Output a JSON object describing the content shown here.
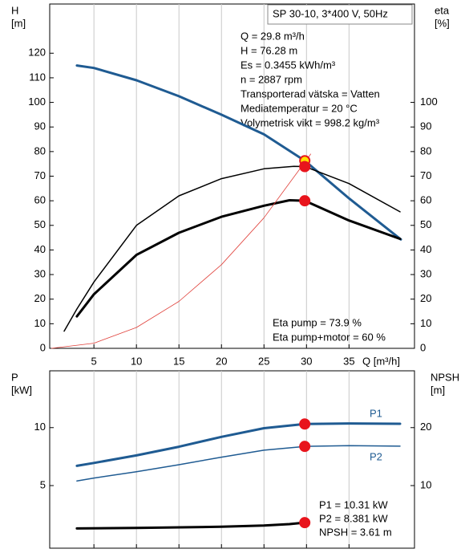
{
  "chart_data": [
    {
      "type": "line",
      "model": "SP 30-10, 3*400 V, 50Hz",
      "ylabel": [
        "H",
        "[m]"
      ],
      "y2label": [
        "eta",
        "[%]"
      ],
      "xlabel": "Q [m³/h]",
      "xlim": [
        -0.2,
        42.7
      ],
      "xticks": [
        5,
        10,
        15,
        20,
        25,
        30,
        35
      ],
      "show_xtick_labels": true,
      "ylim": [
        0,
        140
      ],
      "yticks": [
        0,
        10,
        20,
        30,
        40,
        50,
        60,
        70,
        80,
        90,
        100,
        110,
        120
      ],
      "y2lim": [
        0,
        140
      ],
      "y2ticks": [
        0,
        10,
        20,
        30,
        40,
        50,
        60,
        70,
        80,
        90,
        100
      ],
      "grid": true,
      "info": [
        "Q = 29.8 m³/h",
        "H = 76.28 m",
        "Es = 0.3455 kWh/m³",
        "n = 2887 rpm",
        "Transporterad vätska = Vatten",
        "Mediatemperatur = 20 °C",
        "Volymetrisk vikt = 998.2 kg/m³"
      ],
      "notes": [
        "Eta pump = 73.9 %",
        "Eta pump+motor = 60 %"
      ],
      "series": [
        {
          "color": "#1f5b92",
          "linewidth": 3,
          "axis": "y",
          "x": [
            3,
            5,
            10,
            15,
            20,
            25,
            29.8,
            35,
            41.1
          ],
          "values": [
            115,
            114,
            109,
            102.5,
            95,
            87,
            76.28,
            61,
            44.3
          ]
        },
        {
          "color": "#000000",
          "linewidth": 1.5,
          "axis": "y2",
          "x": [
            1.5,
            3,
            5,
            10,
            15,
            20,
            25,
            28.5,
            29.8,
            35,
            41
          ],
          "values": [
            7,
            16,
            27,
            50,
            62,
            69,
            73,
            74,
            73.9,
            67,
            55.5
          ]
        },
        {
          "color": "#000000",
          "linewidth": 3,
          "axis": "y2",
          "x": [
            3,
            5,
            10,
            15,
            20,
            25,
            28,
            29.8,
            35,
            41
          ],
          "values": [
            13,
            22,
            38,
            47,
            53.5,
            58,
            60.2,
            60,
            52,
            44.5
          ]
        },
        {
          "color": "#e0403a",
          "linewidth": 0.8,
          "axis": "y",
          "x": [
            0,
            5,
            10,
            15,
            20,
            25,
            30.5
          ],
          "values": [
            0,
            2.1,
            8.5,
            19.1,
            34,
            53.1,
            79
          ]
        }
      ],
      "markers": [
        {
          "x": 29.8,
          "y": 76.28,
          "axis": "y",
          "color": "#ffe000"
        },
        {
          "x": 29.8,
          "y": 73.9,
          "axis": "y2",
          "color": "#e8141c"
        },
        {
          "x": 29.8,
          "y": 60,
          "axis": "y2",
          "color": "#e8141c"
        }
      ]
    },
    {
      "type": "line",
      "ylabel": [
        "P",
        "[kW]"
      ],
      "y2label": [
        "NPSH",
        "[m]"
      ],
      "xlim": [
        -0.2,
        42.7
      ],
      "xticks": [
        5,
        10,
        15,
        20,
        25,
        30,
        35
      ],
      "show_xtick_labels": false,
      "ylim": [
        -0.4,
        14.9
      ],
      "yticks": [
        5,
        10
      ],
      "y2lim": [
        -0.8,
        29.8
      ],
      "y2ticks": [
        10,
        20
      ],
      "grid": true,
      "notes": [
        "P1 = 10.31 kW",
        "P2 = 8.381 kW",
        "NPSH = 3.61 m"
      ],
      "series": [
        {
          "name": "P1",
          "name_position": "above",
          "color": "#1f5b92",
          "linewidth": 3,
          "axis": "y",
          "x": [
            3,
            5,
            10,
            15,
            20,
            25,
            29.8,
            35,
            41
          ],
          "values": [
            6.7,
            6.95,
            7.6,
            8.35,
            9.2,
            9.95,
            10.31,
            10.36,
            10.33
          ]
        },
        {
          "name": "P2",
          "name_position": "below",
          "color": "#1f5b92",
          "linewidth": 1.5,
          "axis": "y",
          "x": [
            3,
            5,
            10,
            15,
            20,
            25,
            29.8,
            35,
            41
          ],
          "values": [
            5.4,
            5.65,
            6.2,
            6.8,
            7.45,
            8.05,
            8.381,
            8.45,
            8.4
          ]
        },
        {
          "color": "#000000",
          "linewidth": 3,
          "axis": "y2",
          "x": [
            3,
            10,
            20,
            25,
            28,
            29.8
          ],
          "values": [
            2.6,
            2.7,
            2.9,
            3.1,
            3.35,
            3.61
          ]
        }
      ],
      "markers": [
        {
          "x": 29.8,
          "y": 10.31,
          "axis": "y",
          "color": "#e8141c"
        },
        {
          "x": 29.8,
          "y": 8.381,
          "axis": "y",
          "color": "#e8141c"
        },
        {
          "x": 29.8,
          "y": 3.61,
          "axis": "y2",
          "color": "#e8141c"
        }
      ]
    }
  ]
}
